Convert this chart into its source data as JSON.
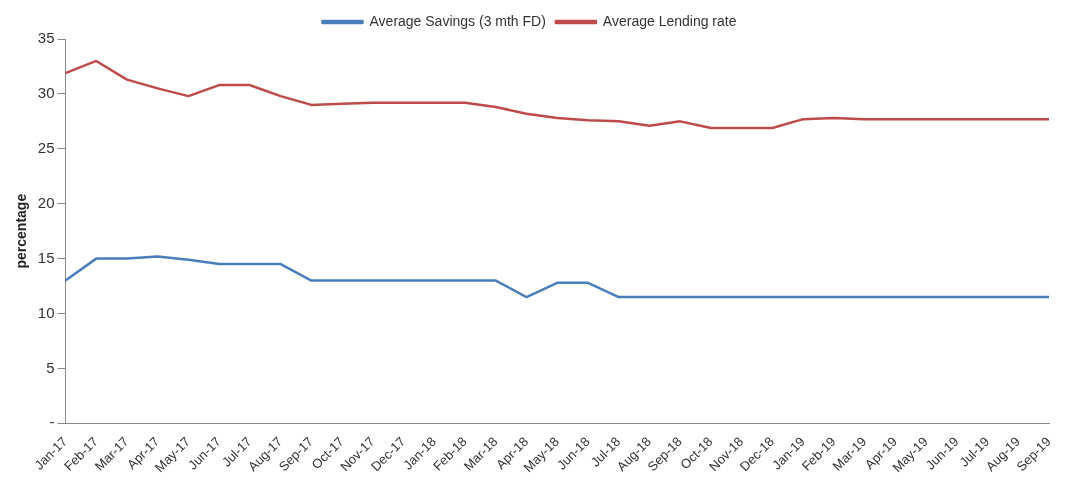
{
  "chart_data": {
    "type": "line",
    "ylabel": "percentage",
    "categories": [
      "Jan-17",
      "Feb-17",
      "Mar-17",
      "Apr-17",
      "May-17",
      "Jun-17",
      "Jul-17",
      "Aug-17",
      "Sep-17",
      "Oct-17",
      "Nov-17",
      "Dec-17",
      "Jan-18",
      "Feb-18",
      "Mar-18",
      "Apr-18",
      "May-18",
      "Jun-18",
      "Jul-18",
      "Aug-18",
      "Sep-18",
      "Oct-18",
      "Nov-18",
      "Dec-18",
      "Jan-19",
      "Feb-19",
      "Mar-19",
      "Apr-19",
      "May-19",
      "Jun-19",
      "Jul-19",
      "Aug-19",
      "Sep-19"
    ],
    "series": [
      {
        "name": "Average Savings (3 mth FD)",
        "color": "#4a7ebb",
        "values": [
          13,
          15,
          15,
          15.2,
          14.9,
          14.5,
          14.5,
          14.5,
          13,
          13,
          13,
          13,
          13,
          13,
          13,
          11.5,
          12.8,
          12.8,
          11.5,
          11.5,
          11.5,
          11.5,
          11.5,
          11.5,
          11.5,
          11.5,
          11.5,
          11.5,
          11.5,
          11.5,
          11.5,
          11.5,
          11.5
        ]
      },
      {
        "name": "Average Lending rate",
        "color": "#be4b48",
        "values": [
          31.9,
          33,
          31.3,
          30.5,
          29.8,
          30.8,
          30.8,
          29.8,
          29,
          29.1,
          29.2,
          29.2,
          29.2,
          29.2,
          28.8,
          28.2,
          27.8,
          27.6,
          27.5,
          27.1,
          27.5,
          26.9,
          26.9,
          26.9,
          27.7,
          27.8,
          27.7,
          27.7,
          27.7,
          27.7,
          27.7,
          27.7,
          27.7
        ]
      }
    ],
    "ylim": [
      0,
      35
    ],
    "yticks": [
      {
        "value": 0,
        "label": "-"
      },
      5,
      10,
      15,
      20,
      25,
      30,
      35
    ],
    "grid": false,
    "legend": "top",
    "marker": "none",
    "line_style": "solid"
  }
}
